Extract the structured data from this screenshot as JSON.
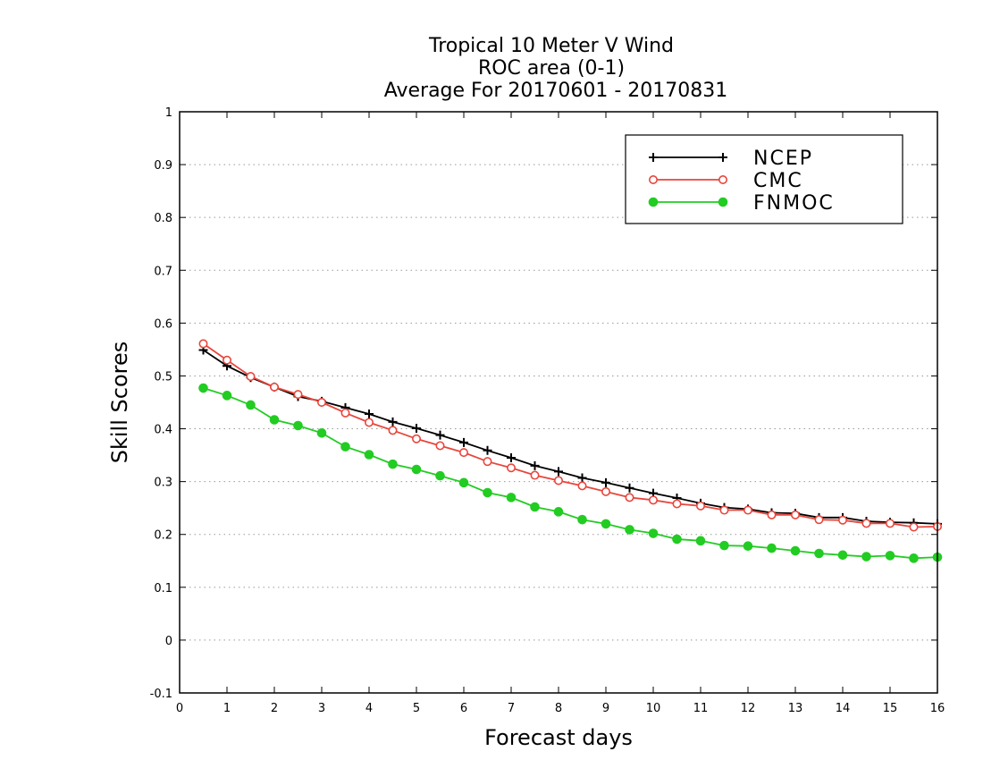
{
  "chart_data": {
    "type": "line",
    "title": [
      "Tropical 10 Meter V Wind",
      "ROC area (0-1)",
      "Average For 20170601 - 20170831"
    ],
    "xlabel": "Forecast days",
    "ylabel": "Skill Scores",
    "xlim": [
      0,
      16
    ],
    "ylim": [
      -0.1,
      1
    ],
    "x_ticks": [
      0,
      1,
      2,
      3,
      4,
      5,
      6,
      7,
      8,
      9,
      10,
      11,
      12,
      13,
      14,
      15,
      16
    ],
    "x_tick_labels": [
      "0",
      "1",
      "2",
      "3",
      "4",
      "5",
      "6",
      "7",
      "8",
      "9",
      "10",
      "11",
      "12",
      "13",
      "14",
      "15",
      "16"
    ],
    "y_ticks": [
      -0.1,
      0,
      0.1,
      0.2,
      0.3,
      0.4,
      0.5,
      0.6,
      0.7,
      0.8,
      0.9,
      1
    ],
    "y_tick_labels": [
      "-0.1",
      "0",
      "0.1",
      "0.2",
      "0.3",
      "0.4",
      "0.5",
      "0.6",
      "0.7",
      "0.8",
      "0.9",
      "1"
    ],
    "grid": {
      "horizontal": true,
      "vertical": false,
      "style": "dotted"
    },
    "legend_position": "top-right",
    "x": [
      0.5,
      1,
      1.5,
      2,
      2.5,
      3,
      3.5,
      4,
      4.5,
      5,
      5.5,
      6,
      6.5,
      7,
      7.5,
      8,
      8.5,
      9,
      9.5,
      10,
      10.5,
      11,
      11.5,
      12,
      12.5,
      13,
      13.5,
      14,
      14.5,
      15,
      15.5,
      16
    ],
    "series": [
      {
        "name": "NCEP",
        "color": "#000000",
        "marker": "plus",
        "values": [
          0.549,
          0.519,
          0.497,
          0.479,
          0.461,
          0.452,
          0.44,
          0.428,
          0.413,
          0.401,
          0.388,
          0.374,
          0.359,
          0.345,
          0.33,
          0.319,
          0.307,
          0.298,
          0.288,
          0.278,
          0.269,
          0.259,
          0.251,
          0.248,
          0.241,
          0.24,
          0.232,
          0.232,
          0.225,
          0.223,
          0.222,
          0.22
        ]
      },
      {
        "name": "CMC",
        "color": "#e8463c",
        "marker": "open-circle",
        "values": [
          0.561,
          0.53,
          0.499,
          0.479,
          0.465,
          0.45,
          0.43,
          0.412,
          0.397,
          0.381,
          0.368,
          0.355,
          0.338,
          0.326,
          0.312,
          0.302,
          0.292,
          0.281,
          0.27,
          0.265,
          0.258,
          0.254,
          0.246,
          0.246,
          0.237,
          0.237,
          0.228,
          0.227,
          0.221,
          0.221,
          0.214,
          0.215
        ]
      },
      {
        "name": "FNMOC",
        "color": "#22cc22",
        "marker": "filled-circle",
        "values": [
          0.477,
          0.463,
          0.445,
          0.417,
          0.406,
          0.392,
          0.366,
          0.351,
          0.333,
          0.323,
          0.311,
          0.298,
          0.279,
          0.27,
          0.252,
          0.243,
          0.228,
          0.22,
          0.209,
          0.202,
          0.191,
          0.188,
          0.179,
          0.178,
          0.174,
          0.169,
          0.164,
          0.161,
          0.158,
          0.16,
          0.155,
          0.157
        ]
      }
    ]
  }
}
